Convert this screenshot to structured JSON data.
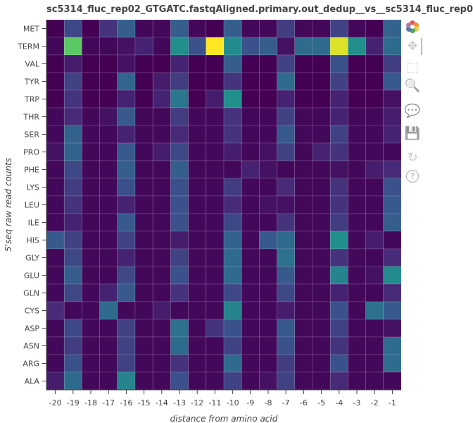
{
  "title": "sc5314_fluc_rep02_GTGATC.fastqAligned.primary.out_dedup__vs__sc5314_fluc_rep0",
  "toolbar": {
    "items": [
      {
        "name": "bokeh-logo-icon",
        "glyph": "",
        "active": false
      },
      {
        "name": "pan-icon",
        "glyph": "✥",
        "active": true
      },
      {
        "name": "box-zoom-icon",
        "glyph": "⬚",
        "active": false
      },
      {
        "name": "wheel-zoom-icon",
        "glyph": "🔍",
        "active": false
      },
      {
        "name": "hover-icon",
        "glyph": "💬",
        "active": false
      },
      {
        "name": "save-icon",
        "glyph": "💾",
        "active": false
      },
      {
        "name": "reset-icon",
        "glyph": "↻",
        "active": false
      },
      {
        "name": "help-icon",
        "glyph": "?",
        "active": false
      }
    ]
  },
  "chart_data": {
    "type": "heatmap",
    "title": "sc5314_fluc_rep02_GTGATC.fastqAligned.primary.out_dedup__vs__sc5314_fluc_rep0",
    "xlabel": "distance from amino acid",
    "ylabel": "5'seq raw read counts",
    "x": [
      "-20",
      "-19",
      "-18",
      "-17",
      "-16",
      "-15",
      "-14",
      "-13",
      "-12",
      "-11",
      "-10",
      "-9",
      "-8",
      "-7",
      "-6",
      "-5",
      "-4",
      "-3",
      "-2",
      "-1"
    ],
    "y": [
      "MET",
      "TERM",
      "VAL",
      "TYR",
      "TRP",
      "THR",
      "SER",
      "PRO",
      "PHE",
      "LYS",
      "LEU",
      "ILE",
      "HIS",
      "GLY",
      "GLU",
      "GLN",
      "CYS",
      "ASP",
      "ASN",
      "ARG",
      "ALA"
    ],
    "colormap": "viridis",
    "values": [
      [
        0.0,
        0.22,
        0.0,
        0.15,
        0.3,
        0.02,
        0.02,
        0.3,
        0.02,
        0.0,
        0.3,
        0.02,
        0.02,
        0.18,
        0.02,
        0.02,
        0.2,
        0.02,
        0.0,
        0.32
      ],
      [
        0.02,
        0.75,
        0.02,
        0.02,
        0.05,
        0.1,
        0.02,
        0.5,
        0.25,
        1.0,
        0.48,
        0.25,
        0.3,
        0.05,
        0.35,
        0.35,
        0.95,
        0.5,
        0.1,
        0.35
      ],
      [
        0.0,
        0.08,
        0.0,
        0.0,
        0.05,
        0.0,
        0.0,
        0.1,
        0.0,
        0.0,
        0.3,
        0.0,
        0.0,
        0.2,
        0.0,
        0.0,
        0.25,
        0.0,
        0.0,
        0.18
      ],
      [
        0.0,
        0.2,
        0.0,
        0.0,
        0.33,
        0.0,
        0.08,
        0.18,
        0.0,
        0.0,
        0.15,
        0.0,
        0.0,
        0.35,
        0.0,
        0.0,
        0.2,
        0.0,
        0.0,
        0.28
      ],
      [
        0.0,
        0.15,
        0.0,
        0.0,
        0.1,
        0.0,
        0.1,
        0.4,
        0.0,
        0.08,
        0.5,
        0.0,
        0.0,
        0.1,
        0.0,
        0.0,
        0.1,
        0.0,
        0.0,
        0.05
      ],
      [
        0.02,
        0.12,
        0.02,
        0.05,
        0.28,
        0.02,
        0.02,
        0.18,
        0.02,
        0.02,
        0.15,
        0.02,
        0.02,
        0.2,
        0.02,
        0.02,
        0.1,
        0.02,
        0.02,
        0.08
      ],
      [
        0.02,
        0.32,
        0.02,
        0.02,
        0.1,
        0.02,
        0.02,
        0.12,
        0.02,
        0.02,
        0.15,
        0.02,
        0.02,
        0.28,
        0.02,
        0.02,
        0.2,
        0.02,
        0.02,
        0.1
      ],
      [
        0.05,
        0.32,
        0.02,
        0.02,
        0.28,
        0.02,
        0.08,
        0.22,
        0.02,
        0.02,
        0.08,
        0.02,
        0.05,
        0.2,
        0.02,
        0.1,
        0.15,
        0.02,
        0.02,
        0.02
      ],
      [
        0.02,
        0.22,
        0.02,
        0.02,
        0.3,
        0.02,
        0.02,
        0.3,
        0.02,
        0.02,
        0.02,
        0.1,
        0.05,
        0.02,
        0.02,
        0.02,
        0.05,
        0.02,
        0.08,
        0.12
      ],
      [
        0.02,
        0.18,
        0.02,
        0.02,
        0.25,
        0.02,
        0.02,
        0.25,
        0.02,
        0.02,
        0.18,
        0.02,
        0.02,
        0.12,
        0.02,
        0.02,
        0.15,
        0.02,
        0.02,
        0.25
      ],
      [
        0.02,
        0.15,
        0.02,
        0.02,
        0.1,
        0.02,
        0.02,
        0.25,
        0.02,
        0.02,
        0.12,
        0.02,
        0.05,
        0.05,
        0.02,
        0.02,
        0.15,
        0.02,
        0.02,
        0.28
      ],
      [
        0.02,
        0.1,
        0.02,
        0.02,
        0.28,
        0.02,
        0.02,
        0.25,
        0.02,
        0.02,
        0.22,
        0.02,
        0.02,
        0.15,
        0.02,
        0.02,
        0.18,
        0.02,
        0.02,
        0.3
      ],
      [
        0.28,
        0.2,
        0.02,
        0.02,
        0.2,
        0.02,
        0.02,
        0.08,
        0.02,
        0.02,
        0.32,
        0.02,
        0.28,
        0.35,
        0.02,
        0.02,
        0.5,
        0.02,
        0.08,
        0.02
      ],
      [
        0.02,
        0.22,
        0.02,
        0.02,
        0.1,
        0.02,
        0.02,
        0.2,
        0.02,
        0.02,
        0.35,
        0.02,
        0.02,
        0.38,
        0.02,
        0.02,
        0.15,
        0.02,
        0.02,
        0.12
      ],
      [
        0.02,
        0.3,
        0.02,
        0.02,
        0.22,
        0.02,
        0.02,
        0.25,
        0.02,
        0.02,
        0.35,
        0.02,
        0.02,
        0.28,
        0.02,
        0.02,
        0.45,
        0.02,
        0.05,
        0.48
      ],
      [
        0.02,
        0.22,
        0.02,
        0.1,
        0.28,
        0.02,
        0.02,
        0.15,
        0.02,
        0.02,
        0.22,
        0.02,
        0.02,
        0.22,
        0.02,
        0.02,
        0.1,
        0.02,
        0.02,
        0.12
      ],
      [
        0.12,
        0.02,
        0.02,
        0.35,
        0.02,
        0.02,
        0.08,
        0.02,
        0.02,
        0.02,
        0.45,
        0.02,
        0.02,
        0.08,
        0.02,
        0.02,
        0.25,
        0.02,
        0.38,
        0.28
      ],
      [
        0.02,
        0.22,
        0.02,
        0.02,
        0.2,
        0.02,
        0.02,
        0.38,
        0.02,
        0.15,
        0.25,
        0.02,
        0.02,
        0.28,
        0.02,
        0.02,
        0.2,
        0.02,
        0.02,
        0.05
      ],
      [
        0.02,
        0.18,
        0.02,
        0.02,
        0.2,
        0.02,
        0.02,
        0.35,
        0.02,
        0.02,
        0.2,
        0.02,
        0.02,
        0.25,
        0.02,
        0.02,
        0.15,
        0.02,
        0.02,
        0.35
      ],
      [
        0.02,
        0.25,
        0.02,
        0.02,
        0.2,
        0.02,
        0.02,
        0.15,
        0.02,
        0.02,
        0.35,
        0.02,
        0.02,
        0.18,
        0.02,
        0.02,
        0.25,
        0.02,
        0.02,
        0.35
      ],
      [
        0.08,
        0.35,
        0.02,
        0.02,
        0.45,
        0.02,
        0.02,
        0.25,
        0.02,
        0.02,
        0.2,
        0.02,
        0.05,
        0.2,
        0.02,
        0.02,
        0.12,
        0.02,
        0.02,
        0.02
      ]
    ]
  }
}
